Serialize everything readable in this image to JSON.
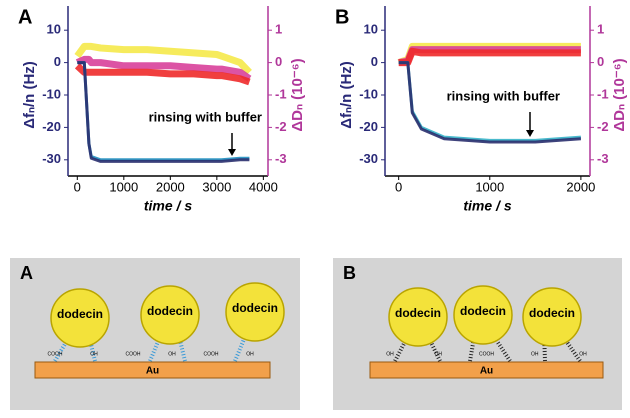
{
  "chart_data": [
    {
      "type": "line",
      "panel": "A",
      "x_label": "time / s",
      "y_label": "Δfₙ/n (Hz)",
      "y2_label": "ΔDₙ (10⁻⁶)",
      "annotation": "rinsing with buffer",
      "x": [
        0,
        150,
        250,
        300,
        500,
        1000,
        1500,
        2000,
        2500,
        3000,
        3100,
        3500,
        3700
      ],
      "xlim": [
        -200,
        4100
      ],
      "xticks": [
        0,
        1000,
        2000,
        3000,
        4000
      ],
      "ylim": [
        -35,
        15
      ],
      "yticks": [
        -30,
        -20,
        -10,
        0,
        10
      ],
      "y2lim": [
        -3.5,
        1.5
      ],
      "y2ticks": [
        -3,
        -2,
        -1,
        0,
        1
      ],
      "series": [
        {
          "color": "#f5e94a",
          "axis": "y2",
          "values": [
            0.2,
            0.5,
            0.5,
            0.5,
            0.45,
            0.4,
            0.4,
            0.35,
            0.3,
            0.25,
            0.2,
            0,
            -0.3
          ]
        },
        {
          "color": "#d8409a",
          "axis": "y2",
          "values": [
            0,
            0.1,
            0.1,
            0,
            0,
            -0.1,
            -0.1,
            -0.1,
            -0.15,
            -0.2,
            -0.2,
            -0.3,
            -0.5
          ]
        },
        {
          "color": "#ee2a2a",
          "axis": "y2",
          "values": [
            -0.1,
            -0.3,
            -0.3,
            -0.3,
            -0.3,
            -0.3,
            -0.3,
            -0.35,
            -0.35,
            -0.4,
            -0.4,
            -0.5,
            -0.6
          ]
        },
        {
          "color": "#1f8fc0",
          "values": [
            0,
            0,
            -25,
            -29,
            -30,
            -30,
            -30,
            -30,
            -30,
            -30,
            -30,
            -29.5,
            -29.5
          ]
        },
        {
          "color": "#2a2f6e",
          "values": [
            0,
            0,
            -25,
            -29.5,
            -30.5,
            -30.5,
            -30.5,
            -30.5,
            -30.5,
            -30.5,
            -30.5,
            -30,
            -30
          ]
        }
      ]
    },
    {
      "type": "line",
      "panel": "B",
      "x_label": "time / s",
      "y_label": "Δfₙ/n (Hz)",
      "y2_label": "ΔDₙ (10⁻⁶)",
      "annotation": "rinsing with buffer",
      "x": [
        0,
        100,
        150,
        250,
        500,
        1000,
        1500,
        2000
      ],
      "xlim": [
        -150,
        2100
      ],
      "xticks": [
        0,
        1000,
        2000
      ],
      "ylim": [
        -35,
        15
      ],
      "yticks": [
        -30,
        -20,
        -10,
        0,
        10
      ],
      "y2lim": [
        -3.5,
        1.5
      ],
      "y2ticks": [
        -3,
        -2,
        -1,
        0,
        1
      ],
      "series": [
        {
          "color": "#f5e94a",
          "axis": "y2",
          "values": [
            0,
            0.1,
            0.5,
            0.5,
            0.5,
            0.5,
            0.5,
            0.5
          ]
        },
        {
          "color": "#d8409a",
          "axis": "y2",
          "values": [
            0,
            0.05,
            0.4,
            0.4,
            0.4,
            0.4,
            0.4,
            0.4
          ]
        },
        {
          "color": "#ee2a2a",
          "axis": "y2",
          "values": [
            0,
            0,
            0.35,
            0.3,
            0.3,
            0.3,
            0.3,
            0.3
          ]
        },
        {
          "color": "#35b3c8",
          "values": [
            0,
            0,
            -15,
            -20,
            -23,
            -24,
            -24,
            -23
          ]
        },
        {
          "color": "#2a2f6e",
          "values": [
            0,
            0,
            -15.5,
            -20.5,
            -23.5,
            -24.5,
            -24.5,
            -23.5
          ]
        }
      ]
    }
  ],
  "diagrams": [
    {
      "label": "A",
      "proteins": [
        "dodecin",
        "dodecin",
        "dodecin"
      ],
      "substrate": "Au",
      "surface_labels": [
        "COOH",
        "OH",
        "COOH",
        "OH",
        "COOH",
        "OH"
      ]
    },
    {
      "label": "B",
      "proteins": [
        "dodecin",
        "dodecin",
        "dodecin"
      ],
      "substrate": "Au",
      "surface_labels": [
        "OH",
        "OH",
        "COOH",
        "OH",
        "OH"
      ]
    }
  ]
}
